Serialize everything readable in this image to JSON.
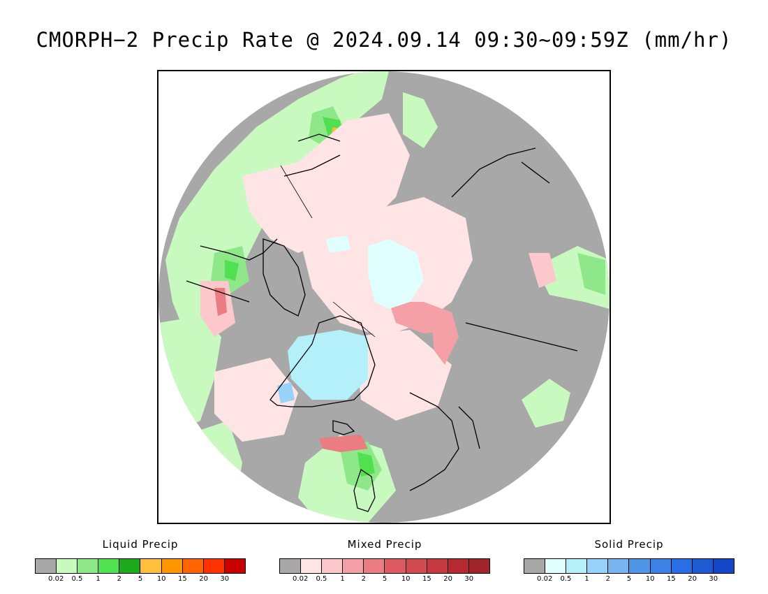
{
  "title": "CMORPH−2 Precip Rate @ 2024.09.14 09:30~09:59Z (mm/hr)",
  "map": {
    "projection": "polar stereographic (north)",
    "no_precip_color": "#a8a8a8",
    "coast_color": "#000000"
  },
  "legends": [
    {
      "id": "liquid",
      "title": "Liquid Precip",
      "colors": [
        "#a8a8a8",
        "#c8fac0",
        "#8ee88a",
        "#50e050",
        "#1eaa1e",
        "#ffbe3c",
        "#ff9600",
        "#ff6400",
        "#ff3200",
        "#c80000"
      ],
      "ticks": [
        "0.02",
        "0.5",
        "1",
        "2",
        "5",
        "10",
        "15",
        "20",
        "30"
      ]
    },
    {
      "id": "mixed",
      "title": "Mixed Precip",
      "colors": [
        "#a8a8a8",
        "#ffe4e6",
        "#fcc8cc",
        "#f4a0a6",
        "#ea7c82",
        "#dc5a60",
        "#d04a50",
        "#c43a40",
        "#b42a30",
        "#a0242a"
      ],
      "ticks": [
        "0.02",
        "0.5",
        "1",
        "2",
        "5",
        "10",
        "15",
        "20",
        "30"
      ]
    },
    {
      "id": "solid",
      "title": "Solid Precip",
      "colors": [
        "#a8a8a8",
        "#e0ffff",
        "#b4f0fa",
        "#96d2fa",
        "#78b4f0",
        "#5096e6",
        "#3c82e6",
        "#286ee6",
        "#1e5ad2",
        "#1446c8"
      ],
      "ticks": [
        "0.02",
        "0.5",
        "1",
        "2",
        "5",
        "10",
        "15",
        "20",
        "30"
      ]
    }
  ]
}
